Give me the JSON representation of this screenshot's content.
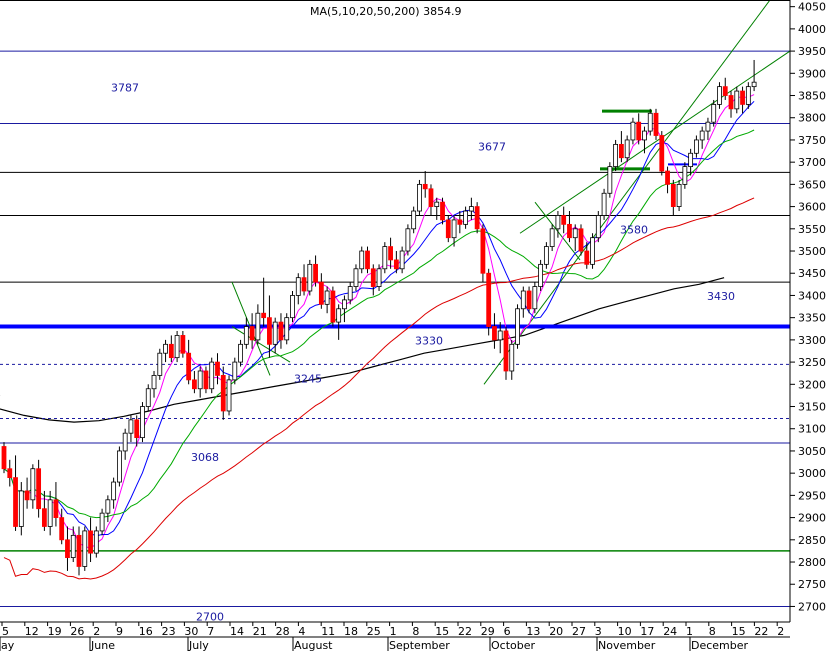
{
  "header": {
    "text": "MA(5,10,20,50,200) 3854.9"
  },
  "chart_data": {
    "type": "candlestick",
    "title": "",
    "xlabel": "",
    "ylabel": "",
    "ylim": [
      2665,
      4065
    ],
    "grid": false,
    "legend": "none",
    "y_ticks": [
      2700,
      2750,
      2800,
      2850,
      2900,
      2950,
      3000,
      3050,
      3100,
      3150,
      3200,
      3250,
      3300,
      3350,
      3400,
      3450,
      3500,
      3550,
      3600,
      3650,
      3700,
      3750,
      3800,
      3850,
      3900,
      3950,
      4000,
      4050
    ],
    "x_day_labels": [
      "5",
      "12",
      "19",
      "26",
      "2",
      "9",
      "16",
      "23",
      "30",
      "7",
      "14",
      "21",
      "28",
      "4",
      "11",
      "18",
      "25",
      "1",
      "8",
      "15",
      "22",
      "29",
      "6",
      "13",
      "20",
      "27",
      "3",
      "10",
      "17",
      "24",
      "1",
      "8",
      "15",
      "22",
      "2"
    ],
    "x_month_labels": [
      "ay",
      "June",
      "July",
      "August",
      "September",
      "October",
      "November",
      "December"
    ],
    "level_labels": [
      {
        "text": "3787",
        "value": 3787
      },
      {
        "text": "3677",
        "value": 3677
      },
      {
        "text": "3580",
        "value": 3580
      },
      {
        "text": "3430",
        "value": 3430
      },
      {
        "text": "3330",
        "value": 3330
      },
      {
        "text": "3245",
        "value": 3245
      },
      {
        "text": "3068",
        "value": 3068
      },
      {
        "text": "2700",
        "value": 2700
      }
    ],
    "horizontal_levels": [
      {
        "value": 3950,
        "style": "solid",
        "color": "#1a1aa0"
      },
      {
        "value": 3787,
        "style": "solid",
        "color": "#1a1aa0"
      },
      {
        "value": 3677,
        "style": "solid",
        "color": "#000000"
      },
      {
        "value": 3580,
        "style": "solid",
        "color": "#000000"
      },
      {
        "value": 3430,
        "style": "solid",
        "color": "#000000"
      },
      {
        "value": 3330,
        "style": "thick",
        "color": "#0000ff"
      },
      {
        "value": 3245,
        "style": "dashed",
        "color": "#1a1aa0"
      },
      {
        "value": 3123,
        "style": "dashed",
        "color": "#1a1aa0"
      },
      {
        "value": 3068,
        "style": "solid",
        "color": "#1a1aa0"
      },
      {
        "value": 2825,
        "style": "solid",
        "color": "#008000"
      },
      {
        "value": 2700,
        "style": "solid",
        "color": "#1a1aa0"
      }
    ],
    "ohlc": [
      [
        3060,
        3070,
        3000,
        3010
      ],
      [
        3010,
        3030,
        2970,
        2990
      ],
      [
        2990,
        3040,
        2870,
        2880
      ],
      [
        2880,
        2980,
        2860,
        2960
      ],
      [
        2960,
        2990,
        2920,
        2940
      ],
      [
        2940,
        3020,
        2920,
        3010
      ],
      [
        3010,
        3030,
        2900,
        2920
      ],
      [
        2920,
        2960,
        2870,
        2880
      ],
      [
        2880,
        2960,
        2860,
        2940
      ],
      [
        2940,
        2980,
        2880,
        2900
      ],
      [
        2900,
        2920,
        2840,
        2850
      ],
      [
        2850,
        2880,
        2780,
        2810
      ],
      [
        2810,
        2880,
        2800,
        2860
      ],
      [
        2860,
        2880,
        2770,
        2790
      ],
      [
        2790,
        2880,
        2780,
        2870
      ],
      [
        2870,
        2900,
        2800,
        2820
      ],
      [
        2820,
        2880,
        2810,
        2870
      ],
      [
        2870,
        2920,
        2860,
        2910
      ],
      [
        2910,
        2950,
        2890,
        2940
      ],
      [
        2940,
        2990,
        2920,
        2980
      ],
      [
        2980,
        3060,
        2970,
        3050
      ],
      [
        3050,
        3100,
        3030,
        3090
      ],
      [
        3090,
        3130,
        3070,
        3120
      ],
      [
        3120,
        3130,
        3060,
        3080
      ],
      [
        3080,
        3160,
        3070,
        3150
      ],
      [
        3150,
        3200,
        3140,
        3190
      ],
      [
        3190,
        3230,
        3170,
        3220
      ],
      [
        3220,
        3280,
        3210,
        3270
      ],
      [
        3270,
        3300,
        3250,
        3290
      ],
      [
        3290,
        3310,
        3250,
        3260
      ],
      [
        3260,
        3320,
        3250,
        3310
      ],
      [
        3310,
        3320,
        3260,
        3270
      ],
      [
        3270,
        3300,
        3200,
        3210
      ],
      [
        3210,
        3230,
        3180,
        3190
      ],
      [
        3190,
        3240,
        3170,
        3230
      ],
      [
        3230,
        3240,
        3180,
        3190
      ],
      [
        3190,
        3260,
        3180,
        3250
      ],
      [
        3250,
        3270,
        3200,
        3220
      ],
      [
        3220,
        3240,
        3120,
        3140
      ],
      [
        3140,
        3220,
        3130,
        3210
      ],
      [
        3210,
        3260,
        3200,
        3250
      ],
      [
        3250,
        3300,
        3240,
        3290
      ],
      [
        3290,
        3350,
        3280,
        3330
      ],
      [
        3330,
        3360,
        3280,
        3300
      ],
      [
        3300,
        3380,
        3290,
        3360
      ],
      [
        3360,
        3440,
        3330,
        3350
      ],
      [
        3350,
        3400,
        3260,
        3290
      ],
      [
        3290,
        3350,
        3270,
        3340
      ],
      [
        3340,
        3360,
        3280,
        3300
      ],
      [
        3300,
        3360,
        3290,
        3350
      ],
      [
        3350,
        3410,
        3340,
        3400
      ],
      [
        3400,
        3450,
        3380,
        3440
      ],
      [
        3440,
        3470,
        3400,
        3410
      ],
      [
        3410,
        3480,
        3400,
        3470
      ],
      [
        3470,
        3490,
        3420,
        3430
      ],
      [
        3430,
        3450,
        3370,
        3380
      ],
      [
        3380,
        3420,
        3360,
        3410
      ],
      [
        3410,
        3420,
        3330,
        3340
      ],
      [
        3340,
        3380,
        3300,
        3370
      ],
      [
        3370,
        3400,
        3340,
        3390
      ],
      [
        3390,
        3430,
        3380,
        3420
      ],
      [
        3420,
        3470,
        3410,
        3460
      ],
      [
        3460,
        3510,
        3450,
        3500
      ],
      [
        3500,
        3510,
        3450,
        3460
      ],
      [
        3460,
        3470,
        3400,
        3420
      ],
      [
        3420,
        3470,
        3410,
        3460
      ],
      [
        3460,
        3520,
        3450,
        3510
      ],
      [
        3510,
        3530,
        3460,
        3480
      ],
      [
        3480,
        3500,
        3450,
        3460
      ],
      [
        3460,
        3510,
        3450,
        3500
      ],
      [
        3500,
        3560,
        3490,
        3550
      ],
      [
        3550,
        3600,
        3540,
        3590
      ],
      [
        3590,
        3660,
        3580,
        3650
      ],
      [
        3650,
        3680,
        3620,
        3640
      ],
      [
        3640,
        3650,
        3580,
        3600
      ],
      [
        3600,
        3620,
        3570,
        3610
      ],
      [
        3610,
        3620,
        3560,
        3570
      ],
      [
        3570,
        3580,
        3520,
        3530
      ],
      [
        3530,
        3580,
        3510,
        3570
      ],
      [
        3570,
        3590,
        3540,
        3560
      ],
      [
        3560,
        3600,
        3550,
        3590
      ],
      [
        3590,
        3620,
        3570,
        3600
      ],
      [
        3600,
        3610,
        3540,
        3550
      ],
      [
        3550,
        3560,
        3430,
        3450
      ],
      [
        3450,
        3460,
        3310,
        3330
      ],
      [
        3330,
        3360,
        3280,
        3300
      ],
      [
        3300,
        3340,
        3270,
        3320
      ],
      [
        3320,
        3330,
        3210,
        3230
      ],
      [
        3230,
        3300,
        3210,
        3290
      ],
      [
        3290,
        3380,
        3280,
        3370
      ],
      [
        3370,
        3420,
        3350,
        3410
      ],
      [
        3410,
        3420,
        3360,
        3370
      ],
      [
        3370,
        3430,
        3360,
        3420
      ],
      [
        3420,
        3480,
        3410,
        3470
      ],
      [
        3470,
        3520,
        3460,
        3510
      ],
      [
        3510,
        3560,
        3500,
        3550
      ],
      [
        3550,
        3590,
        3530,
        3580
      ],
      [
        3580,
        3600,
        3540,
        3560
      ],
      [
        3560,
        3590,
        3520,
        3530
      ],
      [
        3530,
        3560,
        3500,
        3550
      ],
      [
        3550,
        3560,
        3490,
        3500
      ],
      [
        3500,
        3520,
        3460,
        3470
      ],
      [
        3470,
        3540,
        3460,
        3530
      ],
      [
        3530,
        3590,
        3520,
        3580
      ],
      [
        3580,
        3640,
        3570,
        3630
      ],
      [
        3630,
        3700,
        3620,
        3690
      ],
      [
        3690,
        3750,
        3680,
        3740
      ],
      [
        3740,
        3770,
        3700,
        3710
      ],
      [
        3710,
        3760,
        3700,
        3750
      ],
      [
        3750,
        3800,
        3740,
        3790
      ],
      [
        3790,
        3810,
        3740,
        3750
      ],
      [
        3750,
        3780,
        3720,
        3770
      ],
      [
        3770,
        3820,
        3760,
        3810
      ],
      [
        3810,
        3820,
        3750,
        3760
      ],
      [
        3760,
        3770,
        3670,
        3680
      ],
      [
        3680,
        3690,
        3630,
        3650
      ],
      [
        3650,
        3660,
        3580,
        3600
      ],
      [
        3600,
        3660,
        3590,
        3650
      ],
      [
        3650,
        3700,
        3640,
        3690
      ],
      [
        3690,
        3730,
        3670,
        3720
      ],
      [
        3720,
        3760,
        3710,
        3750
      ],
      [
        3750,
        3780,
        3730,
        3770
      ],
      [
        3770,
        3800,
        3750,
        3790
      ],
      [
        3790,
        3840,
        3780,
        3830
      ],
      [
        3830,
        3880,
        3820,
        3870
      ],
      [
        3870,
        3890,
        3840,
        3850
      ],
      [
        3850,
        3860,
        3800,
        3820
      ],
      [
        3820,
        3870,
        3810,
        3860
      ],
      [
        3860,
        3870,
        3810,
        3830
      ],
      [
        3830,
        3880,
        3820,
        3870
      ],
      [
        3870,
        3930,
        3860,
        3880
      ]
    ],
    "moving_averages": [
      {
        "name": "MA5",
        "color": "#ff00ff"
      },
      {
        "name": "MA10",
        "color": "#0000ff"
      },
      {
        "name": "MA20",
        "color": "#00aa00"
      },
      {
        "name": "MA50",
        "color": "#dd0000"
      },
      {
        "name": "MA200",
        "color": "#000000",
        "values": [
          3155,
          3145,
          3130,
          3120,
          3115,
          3118,
          3128,
          3140,
          3155,
          3165,
          3175,
          3185,
          3195,
          3205,
          3215,
          3225,
          3240,
          3255,
          3270,
          3280,
          3290,
          3300,
          3310,
          3330,
          3350,
          3370,
          3385,
          3400,
          3415,
          3425,
          3440
        ]
      }
    ],
    "colors": {
      "up": "#ffffff",
      "down": "#ff0000",
      "outline": "#000000"
    }
  }
}
